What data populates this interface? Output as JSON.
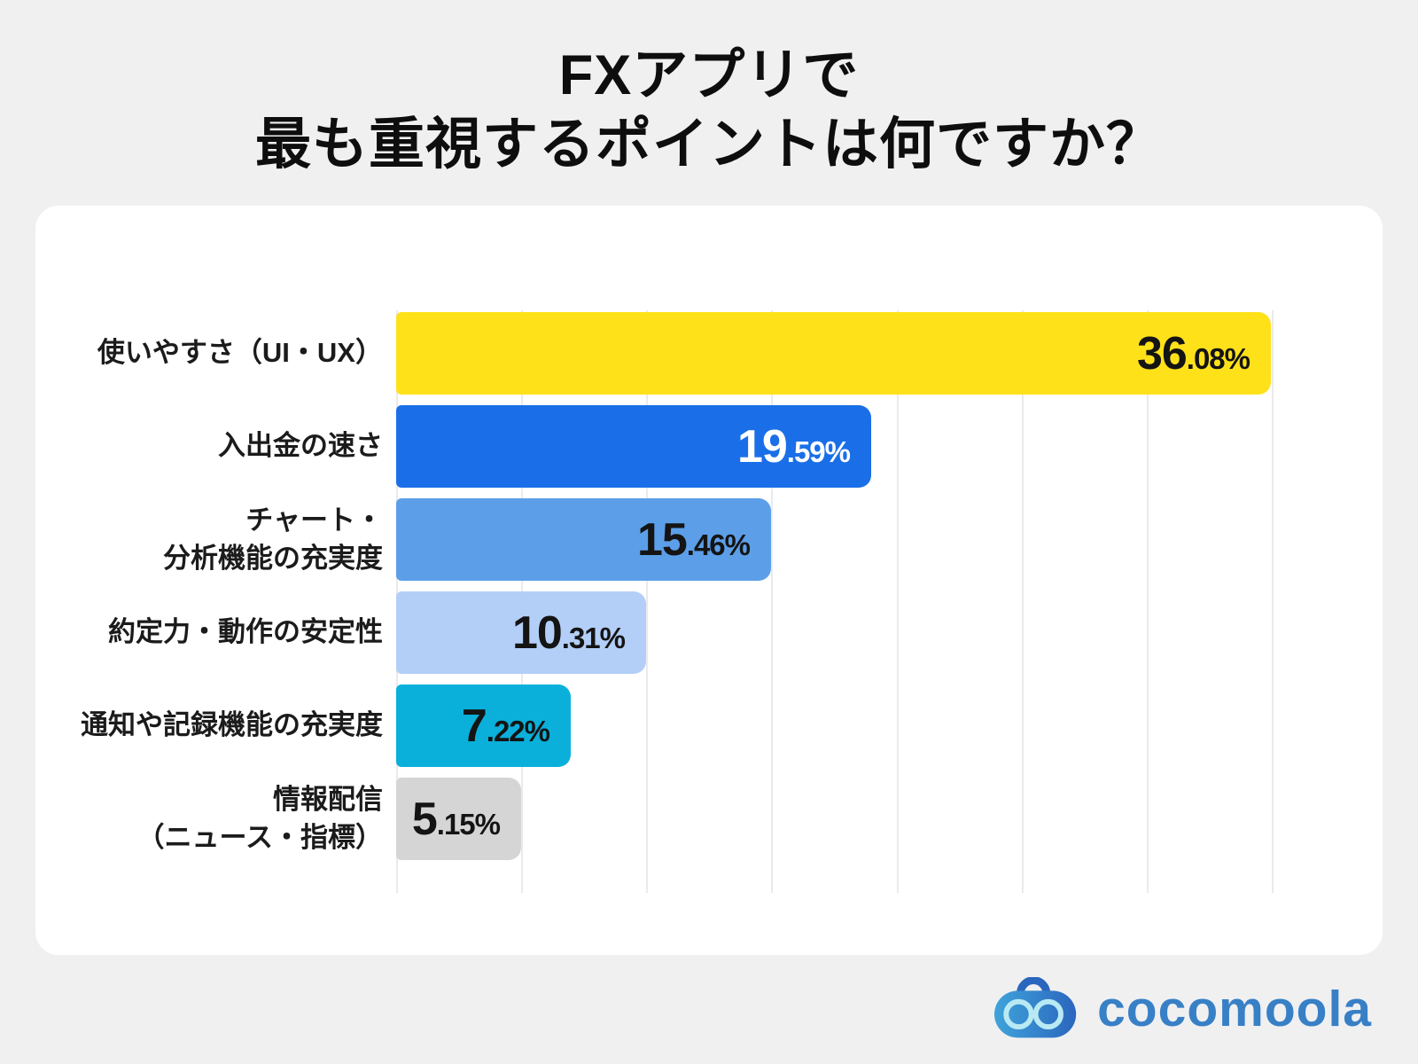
{
  "page": {
    "background": "#f0f0f1",
    "card_background": "#ffffff"
  },
  "title": {
    "line1": "FXアプリで",
    "line2": "最も重視するポイントは何ですか？"
  },
  "chart_data": {
    "type": "bar",
    "orientation": "horizontal",
    "title": "FXアプリで最も重視するポイントは何ですか？",
    "categories": [
      "使いやすさ（UI・UX）",
      "入出金の速さ",
      "チャート・分析機能の充実度",
      "約定力・動作の安定性",
      "通知や記録機能の充実度",
      "情報配信（ニュース・指標）"
    ],
    "category_lines": [
      [
        "使いやすさ（UI・UX）"
      ],
      [
        "入出金の速さ"
      ],
      [
        "チャート・",
        "分析機能の充実度"
      ],
      [
        "約定力・動作の安定性"
      ],
      [
        "通知や記録機能の充実度"
      ],
      [
        "情報配信",
        "（ニュース・指標）"
      ]
    ],
    "values": [
      36.08,
      19.59,
      15.46,
      10.31,
      7.22,
      5.15
    ],
    "data_labels": [
      "36.08%",
      "19.59%",
      "15.46%",
      "10.31%",
      "7.22%",
      "5.15%"
    ],
    "unit": "%",
    "xlim": [
      0,
      36.2
    ],
    "gridline_count": 8,
    "grid": true,
    "legend": false,
    "bar_colors": [
      "#FFE119",
      "#1A6FE8",
      "#5C9FE8",
      "#B3CFF7",
      "#0AB0DA",
      "#D5D5D6"
    ],
    "value_label_colors": [
      "#141414",
      "#FFFFFF",
      "#141414",
      "#141414",
      "#141414",
      "#141414"
    ],
    "grid_color": "#EAEAEC"
  },
  "branding": {
    "logo_text": "cocomoola",
    "logo_color": "#3880C6",
    "logo_icon": "goggle-face-icon",
    "icon_gradient": [
      "#3FA3DA",
      "#2B66BE"
    ],
    "icon_ring_color": "#B9EAF4"
  }
}
